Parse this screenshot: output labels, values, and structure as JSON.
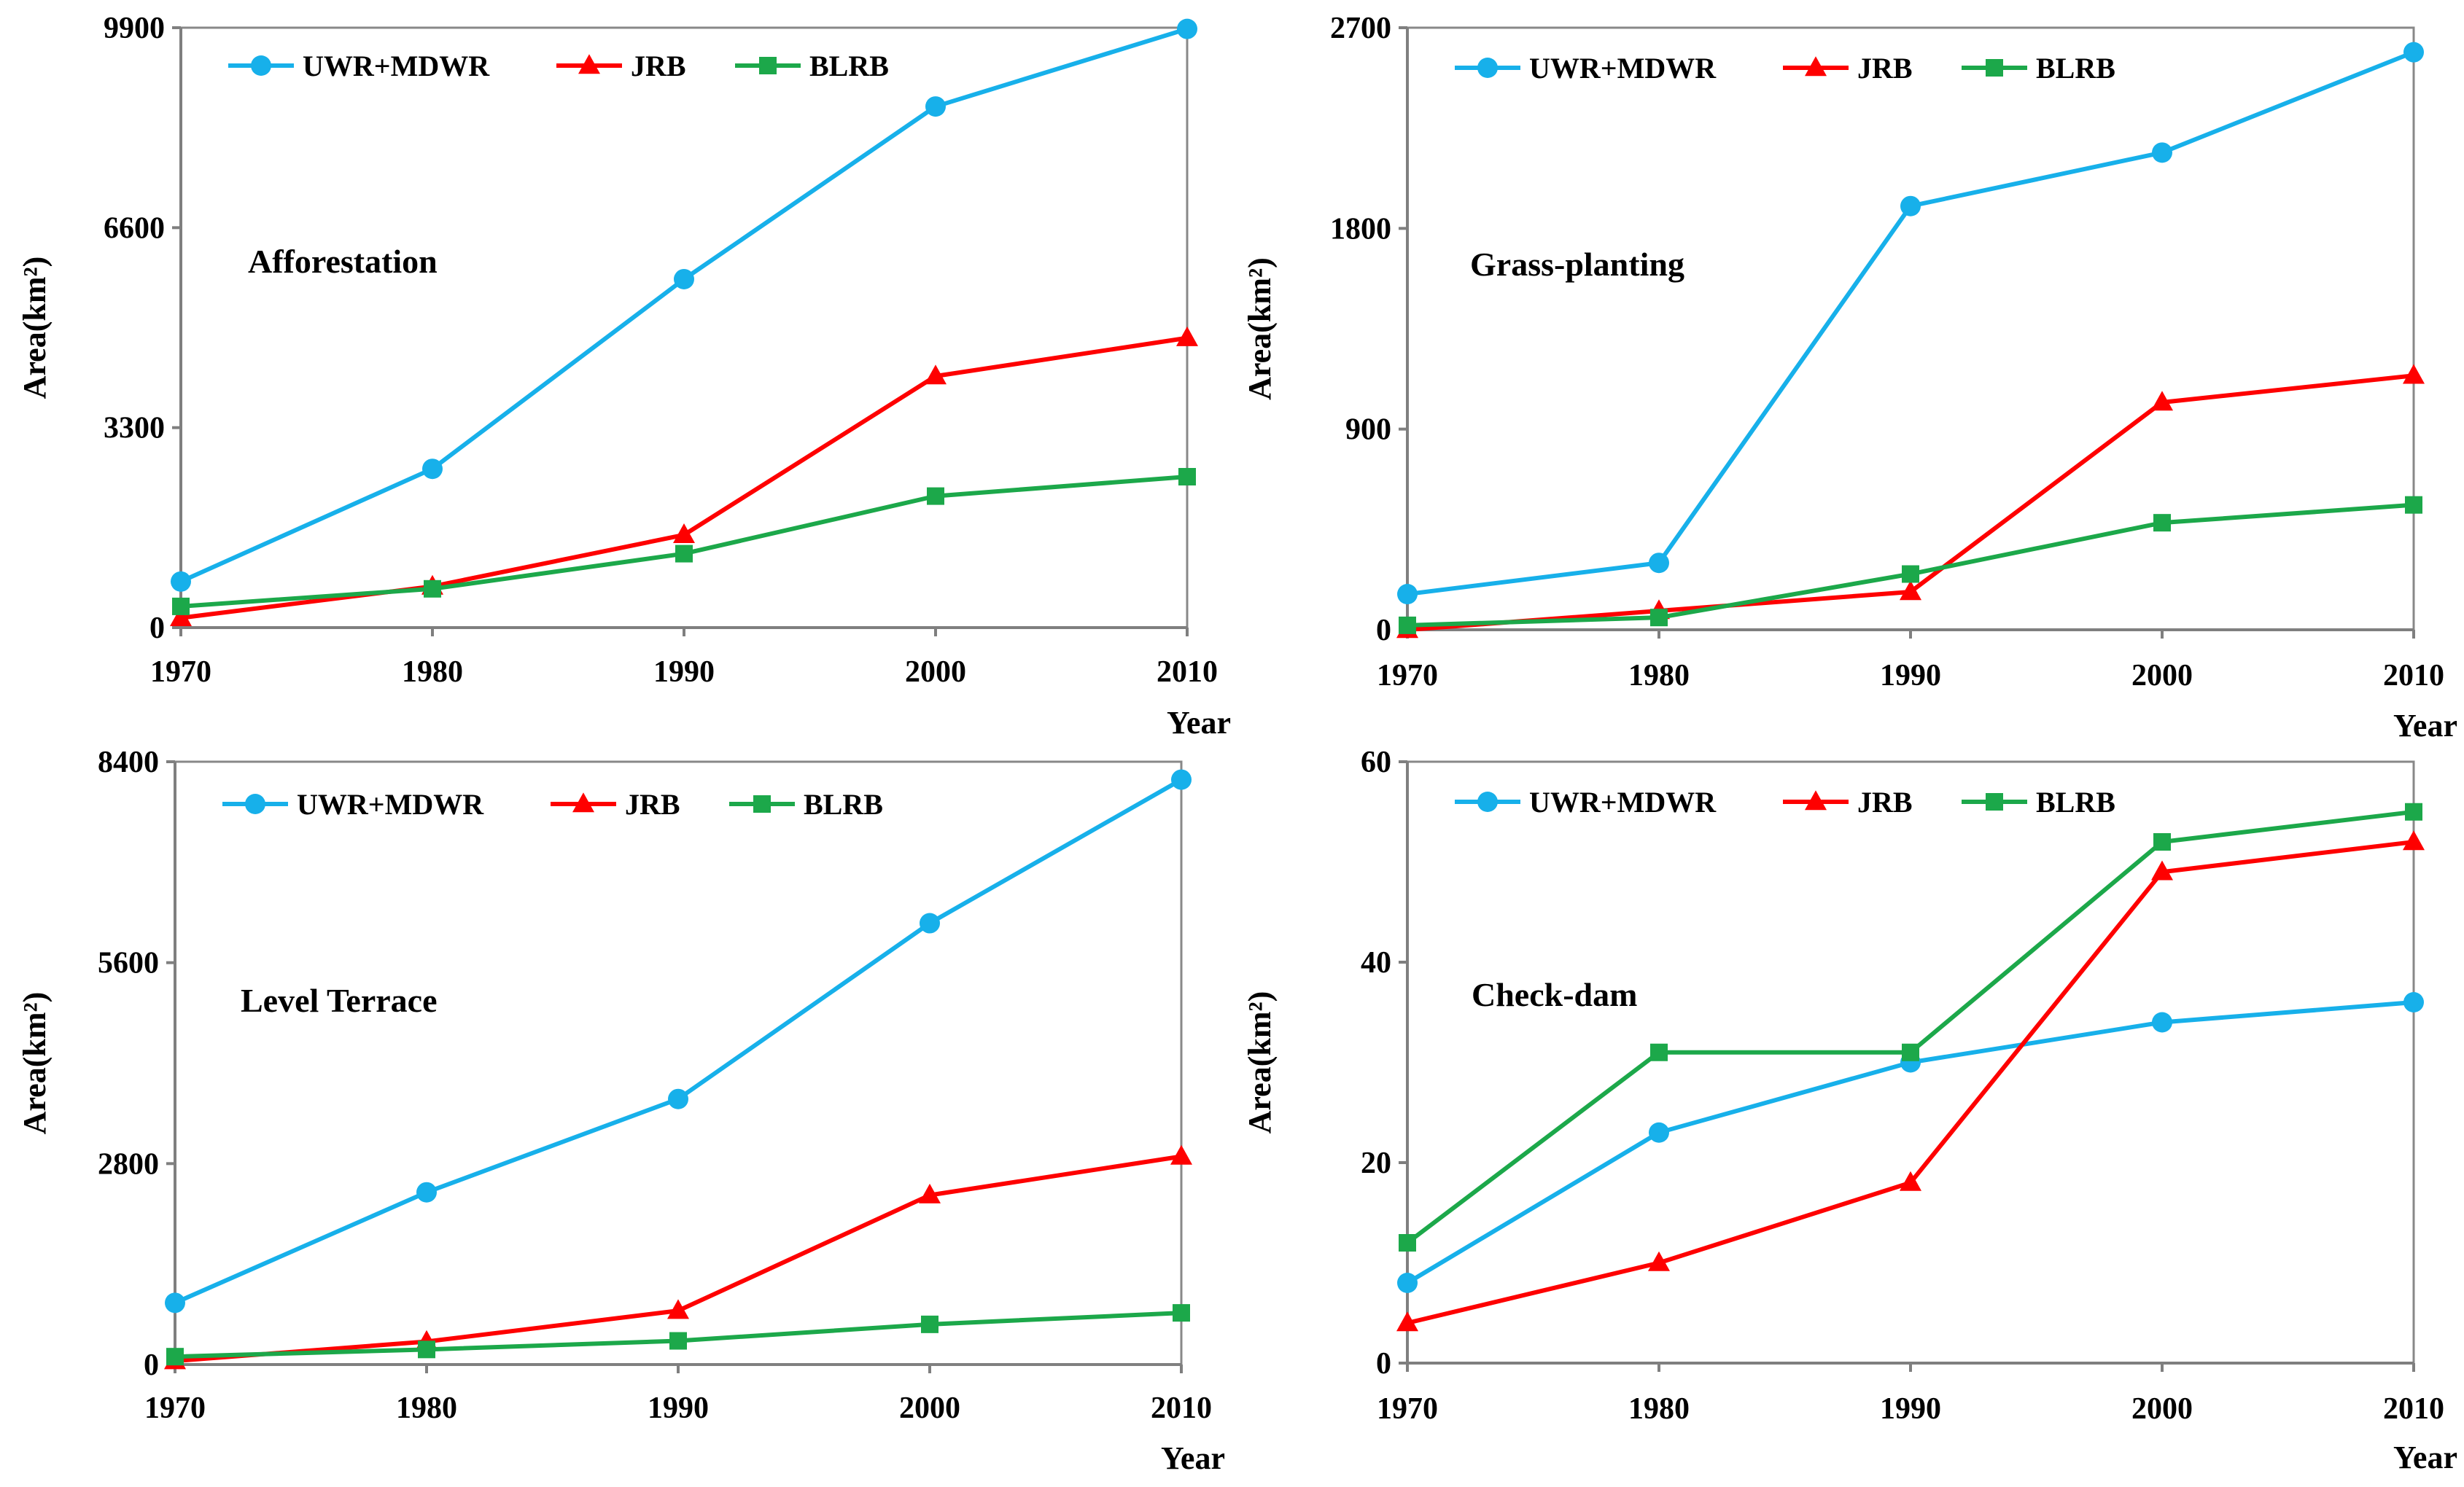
{
  "figure": {
    "description_free": true
  },
  "colors": {
    "UWR+MDWR": "#17b0ea",
    "JRB": "#fe0000",
    "BLRB": "#1ca84a"
  },
  "chart_data": [
    {
      "type": "line",
      "title": "Afforestation",
      "xlabel": "Year",
      "ylabel": "Area(km²)",
      "x": [
        1970,
        1980,
        1990,
        2000,
        2010
      ],
      "xticks": [
        "1970",
        "1980",
        "1990",
        "2000",
        "2010"
      ],
      "ylim": [
        0,
        9900
      ],
      "yticks": [
        "0",
        "3300",
        "6600",
        "9900"
      ],
      "legend_position": "top-left",
      "series": [
        {
          "name": "UWR+MDWR",
          "marker": "circle",
          "values": [
            760,
            2620,
            5750,
            8600,
            9880
          ]
        },
        {
          "name": "JRB",
          "marker": "triangle",
          "values": [
            160,
            680,
            1530,
            4150,
            4780
          ]
        },
        {
          "name": "BLRB",
          "marker": "square",
          "values": [
            350,
            640,
            1220,
            2170,
            2490
          ]
        }
      ]
    },
    {
      "type": "line",
      "title": "Grass-planting",
      "xlabel": "Year",
      "ylabel": "Area(km²)",
      "x": [
        1970,
        1980,
        1990,
        2000,
        2010
      ],
      "xticks": [
        "1970",
        "1980",
        "1990",
        "2000",
        "2010"
      ],
      "ylim": [
        0,
        2700
      ],
      "yticks": [
        "0",
        "900",
        "1800",
        "2700"
      ],
      "legend_position": "top-left",
      "series": [
        {
          "name": "UWR+MDWR",
          "marker": "circle",
          "values": [
            160,
            300,
            1900,
            2140,
            2590
          ]
        },
        {
          "name": "JRB",
          "marker": "triangle",
          "values": [
            0,
            85,
            170,
            1020,
            1140
          ]
        },
        {
          "name": "BLRB",
          "marker": "square",
          "values": [
            20,
            55,
            250,
            480,
            560
          ]
        }
      ]
    },
    {
      "type": "line",
      "title": "Level Terrace",
      "xlabel": "Year",
      "ylabel": "Area(km²)",
      "x": [
        1970,
        1980,
        1990,
        2000,
        2010
      ],
      "xticks": [
        "1970",
        "1980",
        "1990",
        "2000",
        "2010"
      ],
      "ylim": [
        0,
        8400
      ],
      "yticks": [
        "0",
        "2800",
        "5600",
        "8400"
      ],
      "legend_position": "top-left",
      "series": [
        {
          "name": "UWR+MDWR",
          "marker": "circle",
          "values": [
            860,
            2400,
            3700,
            6150,
            8150
          ]
        },
        {
          "name": "JRB",
          "marker": "triangle",
          "values": [
            50,
            320,
            750,
            2360,
            2900
          ]
        },
        {
          "name": "BLRB",
          "marker": "square",
          "values": [
            110,
            210,
            330,
            560,
            720
          ]
        }
      ]
    },
    {
      "type": "line",
      "title": "Check-dam",
      "xlabel": "Year",
      "ylabel": "Area(km²)",
      "x": [
        1970,
        1980,
        1990,
        2000,
        2010
      ],
      "xticks": [
        "1970",
        "1980",
        "1990",
        "2000",
        "2010"
      ],
      "ylim": [
        0,
        60
      ],
      "yticks": [
        "0",
        "20",
        "40",
        "60"
      ],
      "legend_position": "top-left",
      "series": [
        {
          "name": "UWR+MDWR",
          "marker": "circle",
          "values": [
            8,
            23,
            30,
            34,
            36
          ]
        },
        {
          "name": "JRB",
          "marker": "triangle",
          "values": [
            4,
            10,
            18,
            49,
            52
          ]
        },
        {
          "name": "BLRB",
          "marker": "square",
          "values": [
            12,
            31,
            31,
            52,
            55
          ]
        }
      ]
    }
  ]
}
